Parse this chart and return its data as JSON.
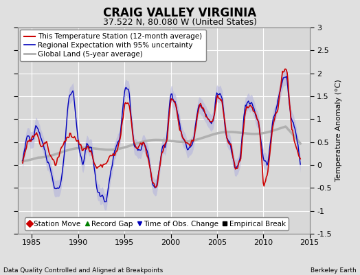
{
  "title": "CRAIG VALLEY VIRGINIA",
  "subtitle": "37.522 N, 80.080 W (United States)",
  "footer_left": "Data Quality Controlled and Aligned at Breakpoints",
  "footer_right": "Berkeley Earth",
  "ylabel": "Temperature Anomaly (°C)",
  "xlim": [
    1983.5,
    2015.0
  ],
  "ylim": [
    -1.5,
    3.0
  ],
  "yticks": [
    -1.5,
    -1.0,
    -0.5,
    0.0,
    0.5,
    1.0,
    1.5,
    2.0,
    2.5,
    3.0
  ],
  "xticks": [
    1985,
    1990,
    1995,
    2000,
    2005,
    2010,
    2015
  ],
  "bg_color": "#e0e0e0",
  "plot_bg_color": "#d8d8d8",
  "grid_color": "#ffffff",
  "red_color": "#cc0000",
  "blue_color": "#0000bb",
  "gray_color": "#b0b0b0",
  "blue_fill_color": "#b0b0dd",
  "title_fontsize": 12,
  "subtitle_fontsize": 9,
  "legend_fontsize": 7.5,
  "axis_fontsize": 8
}
